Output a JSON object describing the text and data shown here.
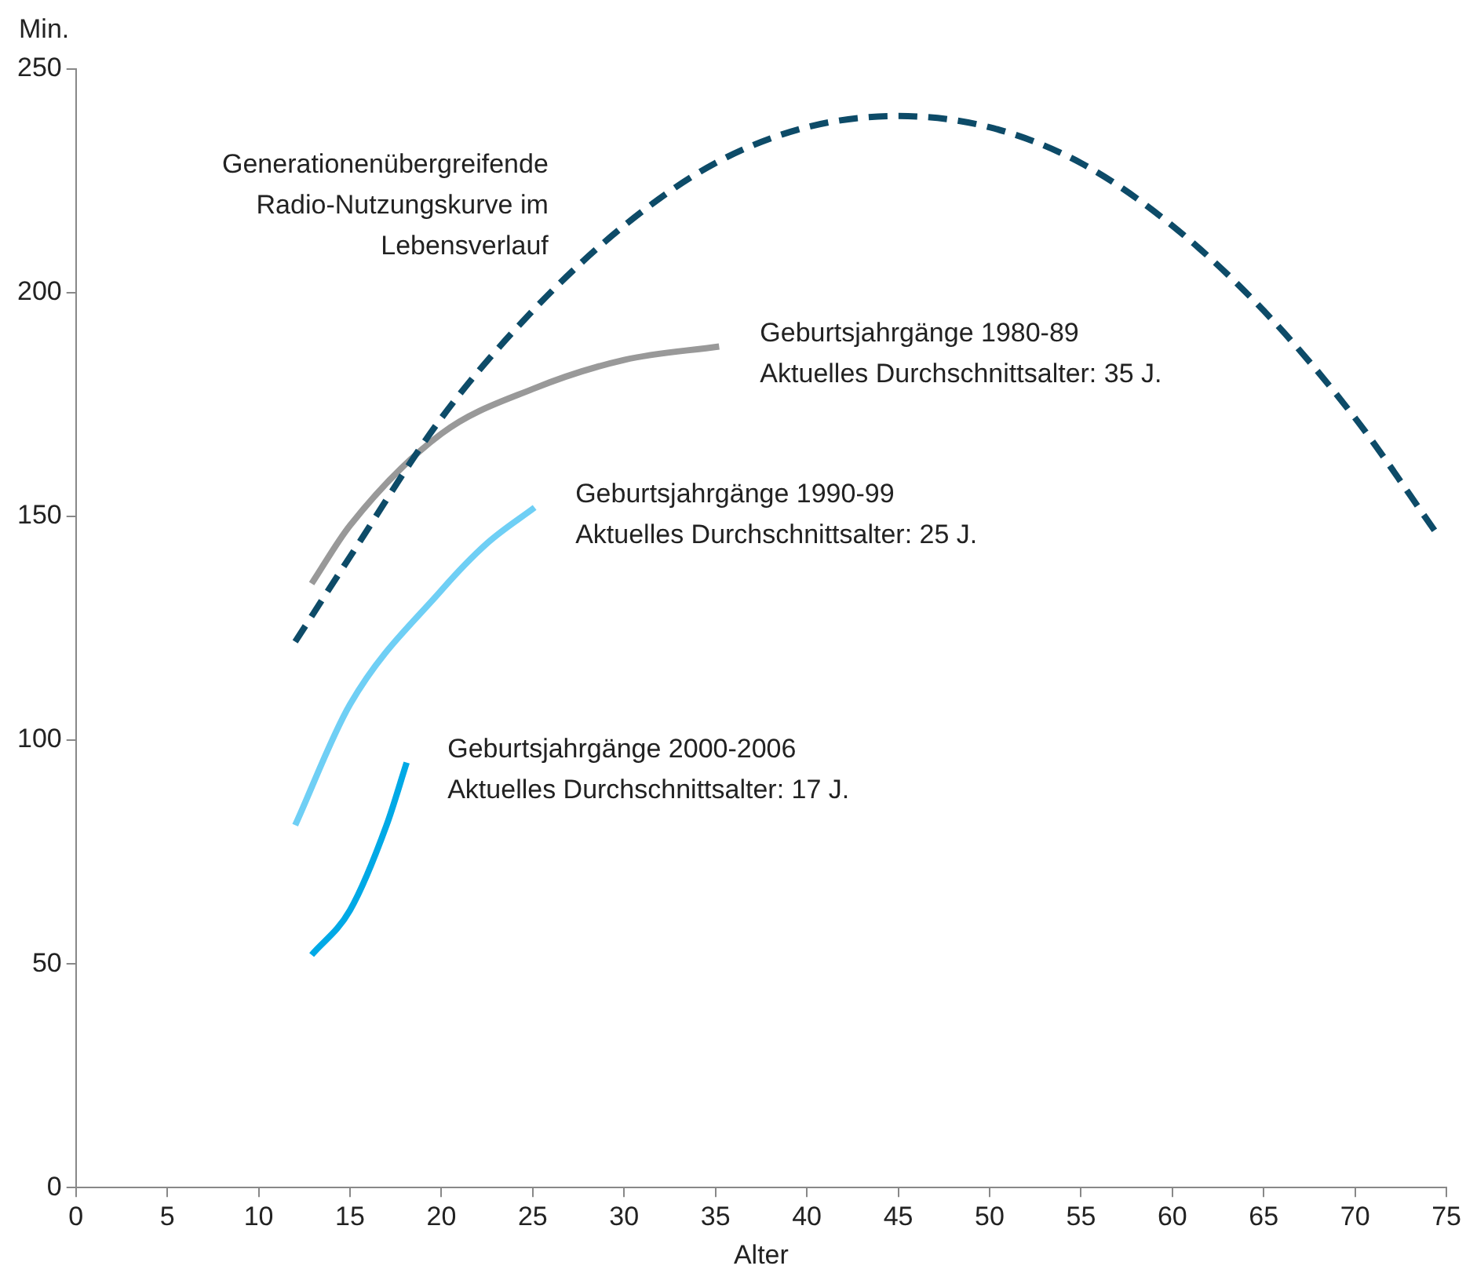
{
  "chart_data": {
    "type": "line",
    "xlabel": "Alter",
    "ylabel": "Min.",
    "xlim": [
      0,
      75
    ],
    "xticks": [
      0,
      5,
      10,
      15,
      20,
      25,
      30,
      35,
      40,
      45,
      50,
      55,
      60,
      65,
      70,
      75
    ],
    "ylim": [
      0,
      250
    ],
    "yticks": [
      0,
      50,
      100,
      150,
      200,
      250
    ],
    "grid": false,
    "legend": false,
    "marker": "none",
    "series": [
      {
        "name": "Generationenübergreifende\nRadio-Nutzungskurve im\nLebensverlauf",
        "color": "#0d4b68",
        "line_style": "dashed",
        "x": [
          12,
          15,
          20,
          25,
          30,
          35,
          40,
          45,
          50,
          55,
          60,
          65,
          70,
          74.5
        ],
        "values": [
          122,
          141,
          172,
          196,
          215,
          229,
          237,
          239.5,
          237,
          229,
          215,
          196,
          172,
          146
        ]
      },
      {
        "name": "Geburtsjahrgänge 1980-89\nAktuelles Durchschnittsalter: 35 J.",
        "color": "#999999",
        "line_style": "solid",
        "x": [
          12.9,
          15,
          20,
          25,
          30,
          35.2
        ],
        "values": [
          135,
          148,
          168.5,
          178.5,
          185,
          188
        ]
      },
      {
        "name": "Geburtsjahrgänge 1990-99\nAktuelles Durchschnittsalter: 25 J.",
        "color": "#6fcff5",
        "line_style": "solid",
        "x": [
          12,
          15,
          20,
          22.5,
          25.1
        ],
        "values": [
          81,
          108,
          133.5,
          144,
          152
        ]
      },
      {
        "name": "Geburtsjahrgänge 2000-2006\nAktuelles Durchschnittsalter: 17 J.",
        "color": "#00a9e6",
        "line_style": "solid",
        "x": [
          12.9,
          15,
          17,
          18.1
        ],
        "values": [
          52,
          62,
          81,
          95
        ]
      }
    ]
  }
}
